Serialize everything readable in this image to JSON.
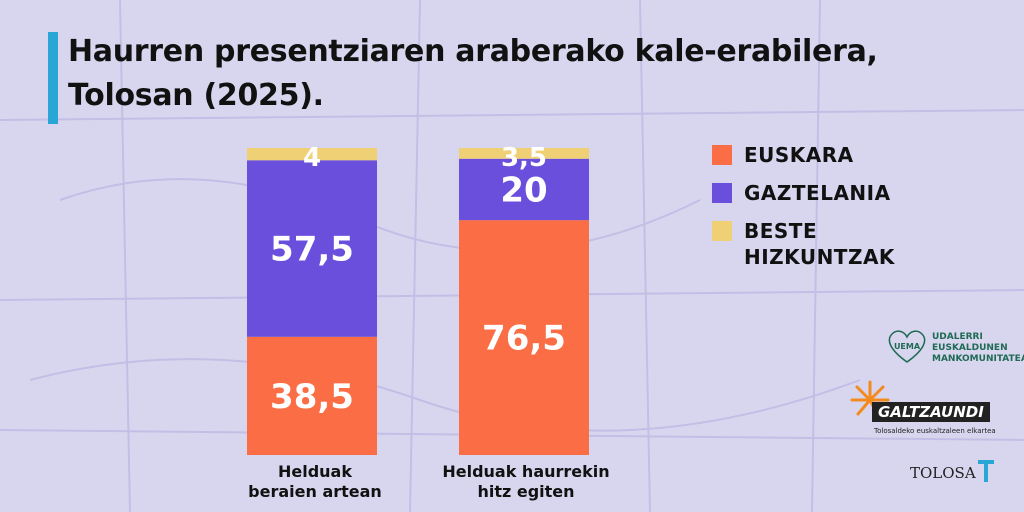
{
  "header": {
    "title": "Haurren presentziaren araberako kale-erabilera, Tolosan (2025)."
  },
  "colors": {
    "euskara": "#fb6d45",
    "gaztelania": "#6a4fdc",
    "beste": "#f0d074",
    "accent": "#2aa6d6",
    "background": "#d8d6ee"
  },
  "chart_data": {
    "type": "bar",
    "stacked": true,
    "categories": [
      "Helduak beraien artean",
      "Helduak haurrekin hitz egiten"
    ],
    "series": [
      {
        "name": "EUSKARA",
        "values": [
          38.5,
          76.5
        ],
        "labels": [
          "38,5",
          "76,5"
        ]
      },
      {
        "name": "GAZTELANIA",
        "values": [
          57.5,
          20
        ],
        "labels": [
          "57,5",
          "20"
        ]
      },
      {
        "name": "BESTE HIZKUNTZAK",
        "values": [
          4,
          3.5
        ],
        "labels": [
          "4",
          "3,5"
        ]
      }
    ],
    "ylim": [
      0,
      100
    ],
    "legend_position": "top-right",
    "grid": false
  },
  "category_labels": [
    {
      "line1": "Helduak",
      "line2": "beraien artean"
    },
    {
      "line1": "Helduak haurrekin",
      "line2": "hitz egiten"
    }
  ],
  "legend": {
    "items": [
      {
        "label": "EUSKARA"
      },
      {
        "label": "GAZTELANIA"
      },
      {
        "label": "BESTE HIZKUNTZAK"
      }
    ]
  },
  "logos": {
    "uema_text": "UDALERRI EUSKALDUNEN MANKOMUNITATEA",
    "uema_mark": "UEMA",
    "galtzaundi_name": "GALTZAUNDI",
    "galtzaundi_sub": "Tolosaldeko euskaltzaleen elkartea",
    "tolosa_name": "TOLOSA"
  }
}
